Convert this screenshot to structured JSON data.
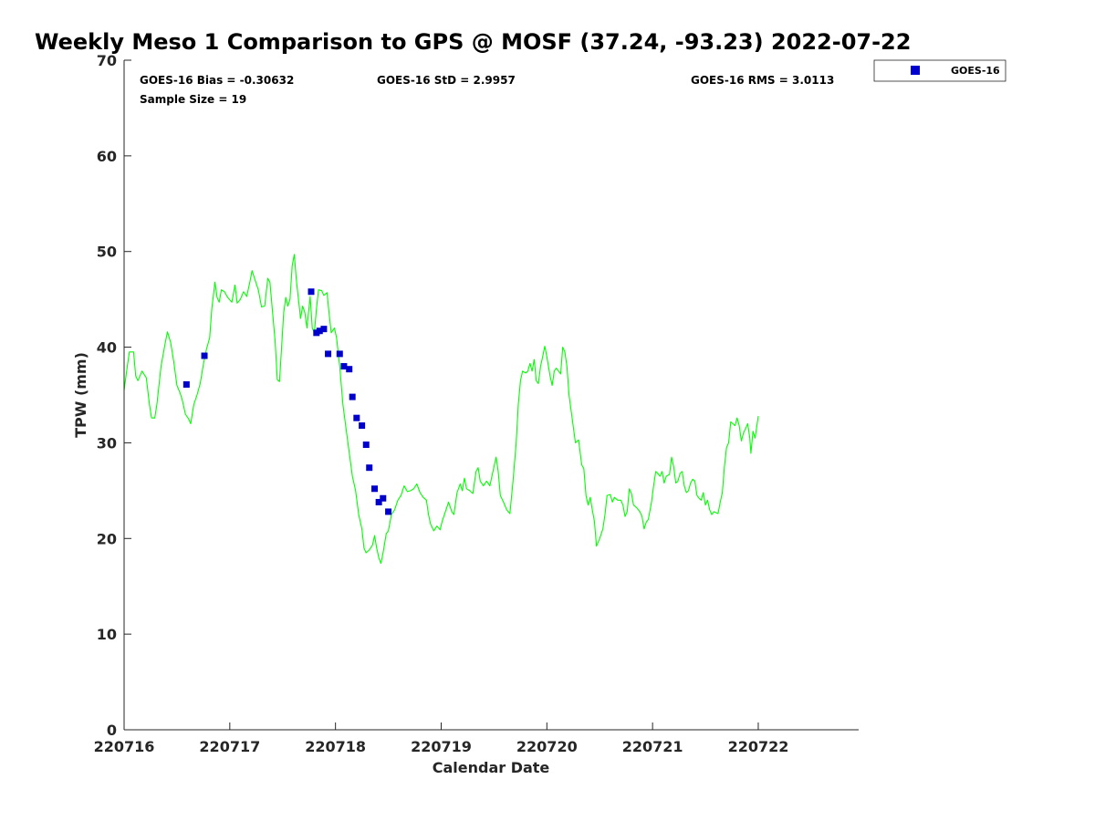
{
  "chart_data": {
    "type": "scatter+line",
    "title": "Weekly Meso 1 Comparison to GPS @ MOSF (37.24, -93.23) 2022-07-22",
    "xlabel": "Calendar Date",
    "ylabel": "TPW (mm)",
    "ylim": [
      0,
      70
    ],
    "xlim": [
      0,
      6.95
    ],
    "yticks": [
      0,
      10,
      20,
      30,
      40,
      50,
      60,
      70
    ],
    "xticks": [
      {
        "value": 0,
        "label": "220716"
      },
      {
        "value": 1,
        "label": "220717"
      },
      {
        "value": 2,
        "label": "220718"
      },
      {
        "value": 3,
        "label": "220719"
      },
      {
        "value": 4,
        "label": "220720"
      },
      {
        "value": 5,
        "label": "220721"
      },
      {
        "value": 6,
        "label": "220722"
      }
    ],
    "stats": {
      "bias": "GOES-16 Bias = -0.30632",
      "std": "GOES-16 StD = 2.9957",
      "rms": "GOES-16 RMS = 3.0113",
      "sample": "Sample Size = 19"
    },
    "legend": {
      "label": "GOES-16",
      "position": "top-right-outside"
    },
    "colors": {
      "gps_line": "#00ff00",
      "goes_markers": "#0000cc",
      "axis": "#262626"
    },
    "series": [
      {
        "name": "GPS",
        "type": "line",
        "points": [
          [
            0.0,
            35.5
          ],
          [
            0.03,
            38.0
          ],
          [
            0.05,
            39.5
          ],
          [
            0.09,
            39.5
          ],
          [
            0.11,
            37.0
          ],
          [
            0.13,
            36.5
          ],
          [
            0.17,
            37.5
          ],
          [
            0.21,
            36.8
          ],
          [
            0.24,
            34.0
          ],
          [
            0.26,
            32.6
          ],
          [
            0.29,
            32.6
          ],
          [
            0.31,
            34.0
          ],
          [
            0.35,
            38.0
          ],
          [
            0.39,
            40.5
          ],
          [
            0.41,
            41.6
          ],
          [
            0.44,
            40.5
          ],
          [
            0.47,
            38.5
          ],
          [
            0.5,
            36.0
          ],
          [
            0.53,
            35.2
          ],
          [
            0.55,
            34.5
          ],
          [
            0.58,
            33.0
          ],
          [
            0.61,
            32.5
          ],
          [
            0.63,
            32.0
          ],
          [
            0.66,
            34.0
          ],
          [
            0.69,
            35.0
          ],
          [
            0.72,
            36.2
          ],
          [
            0.75,
            38.2
          ],
          [
            0.78,
            39.8
          ],
          [
            0.81,
            41.0
          ],
          [
            0.83,
            44.0
          ],
          [
            0.86,
            46.8
          ],
          [
            0.88,
            45.2
          ],
          [
            0.9,
            44.7
          ],
          [
            0.92,
            46.0
          ],
          [
            0.95,
            45.8
          ],
          [
            0.98,
            45.2
          ],
          [
            1.02,
            44.7
          ],
          [
            1.05,
            46.5
          ],
          [
            1.07,
            44.6
          ],
          [
            1.1,
            45.0
          ],
          [
            1.13,
            45.8
          ],
          [
            1.16,
            45.3
          ],
          [
            1.19,
            46.8
          ],
          [
            1.21,
            48.0
          ],
          [
            1.24,
            47.0
          ],
          [
            1.27,
            46.0
          ],
          [
            1.3,
            44.2
          ],
          [
            1.33,
            44.3
          ],
          [
            1.36,
            47.2
          ],
          [
            1.38,
            46.8
          ],
          [
            1.41,
            43.0
          ],
          [
            1.43,
            40.5
          ],
          [
            1.45,
            36.6
          ],
          [
            1.47,
            36.4
          ],
          [
            1.49,
            40.0
          ],
          [
            1.51,
            43.6
          ],
          [
            1.53,
            45.2
          ],
          [
            1.55,
            44.3
          ],
          [
            1.57,
            45.0
          ],
          [
            1.59,
            48.5
          ],
          [
            1.61,
            49.7
          ],
          [
            1.63,
            47.0
          ],
          [
            1.65,
            45.0
          ],
          [
            1.67,
            43.0
          ],
          [
            1.69,
            44.3
          ],
          [
            1.71,
            43.6
          ],
          [
            1.73,
            42.0
          ],
          [
            1.76,
            45.3
          ],
          [
            1.78,
            42.0
          ],
          [
            1.8,
            41.5
          ],
          [
            1.82,
            44.0
          ],
          [
            1.84,
            46.0
          ],
          [
            1.87,
            45.9
          ],
          [
            1.89,
            45.4
          ],
          [
            1.92,
            45.7
          ],
          [
            1.94,
            43.5
          ],
          [
            1.96,
            41.5
          ],
          [
            1.99,
            42.0
          ],
          [
            2.01,
            41.0
          ],
          [
            2.04,
            38.0
          ],
          [
            2.07,
            34.0
          ],
          [
            2.1,
            31.5
          ],
          [
            2.13,
            29.0
          ],
          [
            2.16,
            26.5
          ],
          [
            2.19,
            25.0
          ],
          [
            2.22,
            22.5
          ],
          [
            2.25,
            21.0
          ],
          [
            2.27,
            19.0
          ],
          [
            2.29,
            18.5
          ],
          [
            2.32,
            18.8
          ],
          [
            2.35,
            19.3
          ],
          [
            2.37,
            20.3
          ],
          [
            2.39,
            19.0
          ],
          [
            2.41,
            18.0
          ],
          [
            2.43,
            17.4
          ],
          [
            2.45,
            18.5
          ],
          [
            2.48,
            20.5
          ],
          [
            2.5,
            20.8
          ],
          [
            2.53,
            22.5
          ],
          [
            2.56,
            23.0
          ],
          [
            2.59,
            24.0
          ],
          [
            2.62,
            24.5
          ],
          [
            2.65,
            25.5
          ],
          [
            2.68,
            24.9
          ],
          [
            2.71,
            25.0
          ],
          [
            2.74,
            25.2
          ],
          [
            2.77,
            25.7
          ],
          [
            2.8,
            24.8
          ],
          [
            2.83,
            24.3
          ],
          [
            2.86,
            24.0
          ],
          [
            2.88,
            22.5
          ],
          [
            2.9,
            21.5
          ],
          [
            2.93,
            20.8
          ],
          [
            2.96,
            21.3
          ],
          [
            2.99,
            20.9
          ],
          [
            3.01,
            21.8
          ],
          [
            3.04,
            22.8
          ],
          [
            3.07,
            23.8
          ],
          [
            3.1,
            22.8
          ],
          [
            3.12,
            22.5
          ],
          [
            3.15,
            24.8
          ],
          [
            3.18,
            25.7
          ],
          [
            3.2,
            25.0
          ],
          [
            3.22,
            26.3
          ],
          [
            3.24,
            25.2
          ],
          [
            3.27,
            25.0
          ],
          [
            3.3,
            24.7
          ],
          [
            3.33,
            27.0
          ],
          [
            3.35,
            27.4
          ],
          [
            3.37,
            26.0
          ],
          [
            3.4,
            25.5
          ],
          [
            3.43,
            26.0
          ],
          [
            3.46,
            25.5
          ],
          [
            3.49,
            27.0
          ],
          [
            3.52,
            28.5
          ],
          [
            3.54,
            27.0
          ],
          [
            3.56,
            24.5
          ],
          [
            3.59,
            23.8
          ],
          [
            3.62,
            23.0
          ],
          [
            3.65,
            22.6
          ],
          [
            3.68,
            26.0
          ],
          [
            3.71,
            30.0
          ],
          [
            3.73,
            34.0
          ],
          [
            3.75,
            36.5
          ],
          [
            3.77,
            37.5
          ],
          [
            3.8,
            37.3
          ],
          [
            3.82,
            37.5
          ],
          [
            3.84,
            38.3
          ],
          [
            3.86,
            37.5
          ],
          [
            3.88,
            38.7
          ],
          [
            3.9,
            36.5
          ],
          [
            3.92,
            36.2
          ],
          [
            3.94,
            38.0
          ],
          [
            3.96,
            39.0
          ],
          [
            3.98,
            40.1
          ],
          [
            4.0,
            39.0
          ],
          [
            4.03,
            37.0
          ],
          [
            4.05,
            36.0
          ],
          [
            4.07,
            37.5
          ],
          [
            4.09,
            37.8
          ],
          [
            4.11,
            37.5
          ],
          [
            4.13,
            37.2
          ],
          [
            4.15,
            40.0
          ],
          [
            4.17,
            39.5
          ],
          [
            4.19,
            38.0
          ],
          [
            4.21,
            35.0
          ],
          [
            4.24,
            32.5
          ],
          [
            4.27,
            30.0
          ],
          [
            4.3,
            30.3
          ],
          [
            4.33,
            27.7
          ],
          [
            4.35,
            27.3
          ],
          [
            4.37,
            24.5
          ],
          [
            4.39,
            23.5
          ],
          [
            4.41,
            24.3
          ],
          [
            4.43,
            23.0
          ],
          [
            4.45,
            21.8
          ],
          [
            4.47,
            19.2
          ],
          [
            4.5,
            20.0
          ],
          [
            4.53,
            21.0
          ],
          [
            4.55,
            22.5
          ],
          [
            4.57,
            24.5
          ],
          [
            4.6,
            24.6
          ],
          [
            4.62,
            23.8
          ],
          [
            4.64,
            24.3
          ],
          [
            4.67,
            24.0
          ],
          [
            4.7,
            24.0
          ],
          [
            4.72,
            23.5
          ],
          [
            4.74,
            22.3
          ],
          [
            4.76,
            22.8
          ],
          [
            4.78,
            25.2
          ],
          [
            4.8,
            24.7
          ],
          [
            4.82,
            23.5
          ],
          [
            4.85,
            23.2
          ],
          [
            4.88,
            22.8
          ],
          [
            4.9,
            22.3
          ],
          [
            4.92,
            21.0
          ],
          [
            4.94,
            21.7
          ],
          [
            4.96,
            22.0
          ],
          [
            4.99,
            23.8
          ],
          [
            5.01,
            25.5
          ],
          [
            5.03,
            27.0
          ],
          [
            5.05,
            26.8
          ],
          [
            5.07,
            26.5
          ],
          [
            5.09,
            27.0
          ],
          [
            5.11,
            25.8
          ],
          [
            5.13,
            26.5
          ],
          [
            5.16,
            26.7
          ],
          [
            5.18,
            28.5
          ],
          [
            5.2,
            27.5
          ],
          [
            5.22,
            25.8
          ],
          [
            5.24,
            26.0
          ],
          [
            5.26,
            26.8
          ],
          [
            5.28,
            27.0
          ],
          [
            5.3,
            25.5
          ],
          [
            5.32,
            24.8
          ],
          [
            5.34,
            25.0
          ],
          [
            5.36,
            25.8
          ],
          [
            5.38,
            26.2
          ],
          [
            5.4,
            26.0
          ],
          [
            5.42,
            24.5
          ],
          [
            5.44,
            24.2
          ],
          [
            5.46,
            24.0
          ],
          [
            5.48,
            24.8
          ],
          [
            5.5,
            23.5
          ],
          [
            5.52,
            24.0
          ],
          [
            5.54,
            23.0
          ],
          [
            5.56,
            22.5
          ],
          [
            5.58,
            22.8
          ],
          [
            5.6,
            22.7
          ],
          [
            5.62,
            22.6
          ],
          [
            5.64,
            23.8
          ],
          [
            5.66,
            24.8
          ],
          [
            5.68,
            27.5
          ],
          [
            5.7,
            29.5
          ],
          [
            5.72,
            30.0
          ],
          [
            5.74,
            32.2
          ],
          [
            5.76,
            32.0
          ],
          [
            5.78,
            31.8
          ],
          [
            5.8,
            32.6
          ],
          [
            5.82,
            31.8
          ],
          [
            5.84,
            30.2
          ],
          [
            5.86,
            31.0
          ],
          [
            5.88,
            31.5
          ],
          [
            5.9,
            32.0
          ],
          [
            5.92,
            30.5
          ],
          [
            5.93,
            28.9
          ],
          [
            5.95,
            31.2
          ],
          [
            5.97,
            30.5
          ],
          [
            6.0,
            32.8
          ]
        ]
      },
      {
        "name": "GOES-16",
        "type": "scatter",
        "points": [
          [
            0.59,
            36.1
          ],
          [
            0.76,
            39.1
          ],
          [
            1.77,
            45.8
          ],
          [
            1.82,
            41.5
          ],
          [
            1.85,
            41.7
          ],
          [
            1.89,
            41.9
          ],
          [
            1.93,
            39.3
          ],
          [
            2.04,
            39.3
          ],
          [
            2.08,
            38.0
          ],
          [
            2.13,
            37.7
          ],
          [
            2.16,
            34.8
          ],
          [
            2.2,
            32.6
          ],
          [
            2.25,
            31.8
          ],
          [
            2.29,
            29.8
          ],
          [
            2.32,
            27.4
          ],
          [
            2.37,
            25.2
          ],
          [
            2.41,
            23.8
          ],
          [
            2.45,
            24.2
          ],
          [
            2.5,
            22.8
          ]
        ]
      }
    ]
  }
}
